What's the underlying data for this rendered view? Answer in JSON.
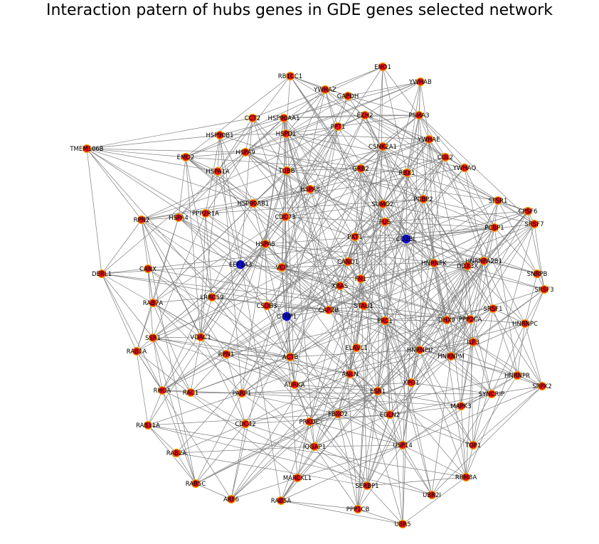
{
  "title": "Interaction patern of hubs genes in GDE genes selected network",
  "colors": {
    "hub": "#e8141c",
    "hub_outline": "#f5a800",
    "special": "#1010d0",
    "edge": "#808080"
  },
  "nodes": [
    {
      "id": "ENO1",
      "t": "hub"
    },
    {
      "id": "RB1CC1",
      "t": "hub"
    },
    {
      "id": "YWHAZ",
      "t": "hub"
    },
    {
      "id": "YWHAB",
      "t": "hub"
    },
    {
      "id": "GAPDH",
      "t": "hub"
    },
    {
      "id": "CCT2",
      "t": "hub"
    },
    {
      "id": "HSP90AA1",
      "t": "hub"
    },
    {
      "id": "EZH2",
      "t": "hub"
    },
    {
      "id": "PSMA3",
      "t": "hub"
    },
    {
      "id": "HSPD1",
      "t": "hub"
    },
    {
      "id": "PPT1",
      "t": "hub"
    },
    {
      "id": "HSP90B1",
      "t": "hub"
    },
    {
      "id": "YWHAE",
      "t": "hub"
    },
    {
      "id": "CSNK2A1",
      "t": "hub"
    },
    {
      "id": "TMEM106B",
      "t": "hub"
    },
    {
      "id": "EMD2",
      "t": "hub"
    },
    {
      "id": "HSPA9",
      "t": "hub"
    },
    {
      "id": "CUL2",
      "t": "hub"
    },
    {
      "id": "HSPA1A",
      "t": "hub"
    },
    {
      "id": "TUBB",
      "t": "hub"
    },
    {
      "id": "GRB2",
      "t": "hub"
    },
    {
      "id": "RBX1",
      "t": "hub"
    },
    {
      "id": "YWHAQ",
      "t": "hub"
    },
    {
      "id": "HSPA8",
      "t": "hub"
    },
    {
      "id": "PCBP2",
      "t": "hub"
    },
    {
      "id": "SFSR1",
      "t": "hub"
    },
    {
      "id": "RPN2",
      "t": "hub"
    },
    {
      "id": "HSP90AB1",
      "t": "hub"
    },
    {
      "id": "SUMO2",
      "t": "hub"
    },
    {
      "id": "CPSF6",
      "t": "hub"
    },
    {
      "id": "HSPA4",
      "t": "hub"
    },
    {
      "id": "PPP2R1A",
      "t": "hub"
    },
    {
      "id": "FUS",
      "t": "hub"
    },
    {
      "id": "PCBP1",
      "t": "hub"
    },
    {
      "id": "SRSF7",
      "t": "hub"
    },
    {
      "id": "CDC73",
      "t": "hub"
    },
    {
      "id": "CD2BL",
      "t": "special"
    },
    {
      "id": "PXT1",
      "t": "hub"
    },
    {
      "id": "HSPA5",
      "t": "hub"
    },
    {
      "id": "HNRNPA2B1",
      "t": "hub"
    },
    {
      "id": "EEF1A3",
      "t": "special"
    },
    {
      "id": "VCP",
      "t": "hub"
    },
    {
      "id": "CAND1",
      "t": "hub"
    },
    {
      "id": "HNRNPK",
      "t": "hub"
    },
    {
      "id": "DDX3X",
      "t": "hub"
    },
    {
      "id": "DERL1",
      "t": "hub"
    },
    {
      "id": "CANX",
      "t": "hub"
    },
    {
      "id": "FN1",
      "t": "hub"
    },
    {
      "id": "SNRPB",
      "t": "hub"
    },
    {
      "id": "KRAS",
      "t": "hub"
    },
    {
      "id": "SRSF3",
      "t": "hub"
    },
    {
      "id": "LRRC59",
      "t": "hub"
    },
    {
      "id": "RAB7A",
      "t": "hub"
    },
    {
      "id": "CSDB3",
      "t": "hub"
    },
    {
      "id": "STAU1",
      "t": "hub"
    },
    {
      "id": "CAPZB",
      "t": "hub"
    },
    {
      "id": "SRSF1",
      "t": "hub"
    },
    {
      "id": "CTNP1",
      "t": "special"
    },
    {
      "id": "PRC1",
      "t": "hub"
    },
    {
      "id": "DHX9",
      "t": "hub"
    },
    {
      "id": "PPP2CA",
      "t": "hub"
    },
    {
      "id": "HNRNPC",
      "t": "hub"
    },
    {
      "id": "SSR1",
      "t": "hub"
    },
    {
      "id": "VDAC1",
      "t": "hub"
    },
    {
      "id": "ILF3",
      "t": "hub"
    },
    {
      "id": "RAB1A",
      "t": "hub"
    },
    {
      "id": "ELAVL1",
      "t": "hub"
    },
    {
      "id": "HNRNPU",
      "t": "hub"
    },
    {
      "id": "RPN1",
      "t": "hub"
    },
    {
      "id": "ACTB",
      "t": "hub"
    },
    {
      "id": "HNRNPM",
      "t": "hub"
    },
    {
      "id": "ANLN",
      "t": "hub"
    },
    {
      "id": "HNRNPR",
      "t": "hub"
    },
    {
      "id": "SRPK2",
      "t": "hub"
    },
    {
      "id": "AURKA",
      "t": "hub"
    },
    {
      "id": "XPO1",
      "t": "hub"
    },
    {
      "id": "RHOA",
      "t": "hub"
    },
    {
      "id": "RAC1",
      "t": "hub"
    },
    {
      "id": "PARP1",
      "t": "hub"
    },
    {
      "id": "SYNCRIP",
      "t": "hub"
    },
    {
      "id": "ESR1",
      "t": "hub"
    },
    {
      "id": "FBXO2",
      "t": "hub"
    },
    {
      "id": "EGLN2",
      "t": "hub"
    },
    {
      "id": "MAPK3",
      "t": "hub"
    },
    {
      "id": "CDC42",
      "t": "hub"
    },
    {
      "id": "PRKDC",
      "t": "hub"
    },
    {
      "id": "RAB11A",
      "t": "hub"
    },
    {
      "id": "USP14",
      "t": "hub"
    },
    {
      "id": "TOP1",
      "t": "hub"
    },
    {
      "id": "IQGAP1",
      "t": "hub"
    },
    {
      "id": "RAB2A",
      "t": "hub"
    },
    {
      "id": "RBM8A",
      "t": "hub"
    },
    {
      "id": "MARCKL1",
      "t": "hub"
    },
    {
      "id": "RAB5C",
      "t": "hub"
    },
    {
      "id": "SERBP1",
      "t": "hub"
    },
    {
      "id": "ARF6",
      "t": "hub"
    },
    {
      "id": "RAB5A",
      "t": "hub"
    },
    {
      "id": "UBR2I",
      "t": "hub"
    },
    {
      "id": "PPP1CB",
      "t": "hub"
    },
    {
      "id": "UBR5",
      "t": "hub"
    }
  ]
}
